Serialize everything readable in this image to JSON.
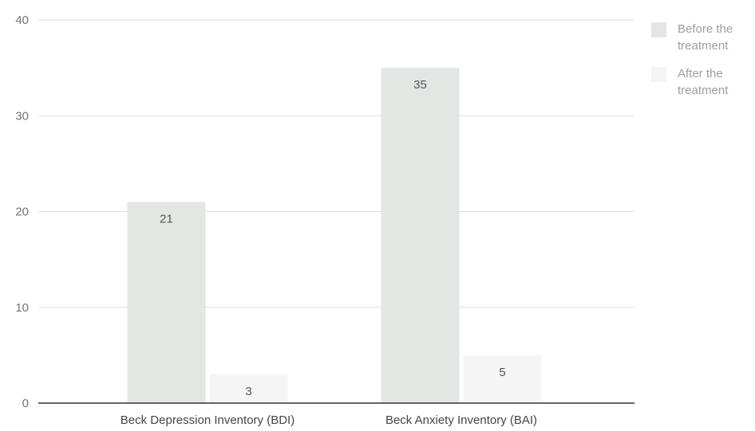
{
  "chart_data": {
    "type": "bar",
    "categories": [
      "Beck Depression Inventory (BDI)",
      "Beck Anxiety Inventory (BAI)"
    ],
    "series": [
      {
        "name": "Before the treatment",
        "values": [
          21,
          35
        ],
        "color": "#e2e7e4"
      },
      {
        "name": "After the treatment",
        "values": [
          3,
          5
        ],
        "color": "#f5f5f5"
      }
    ],
    "yticks": [
      0,
      10,
      20,
      30,
      40
    ],
    "ylim": [
      0,
      40
    ],
    "grid": true,
    "data_labels": true,
    "legend_position": "right"
  }
}
